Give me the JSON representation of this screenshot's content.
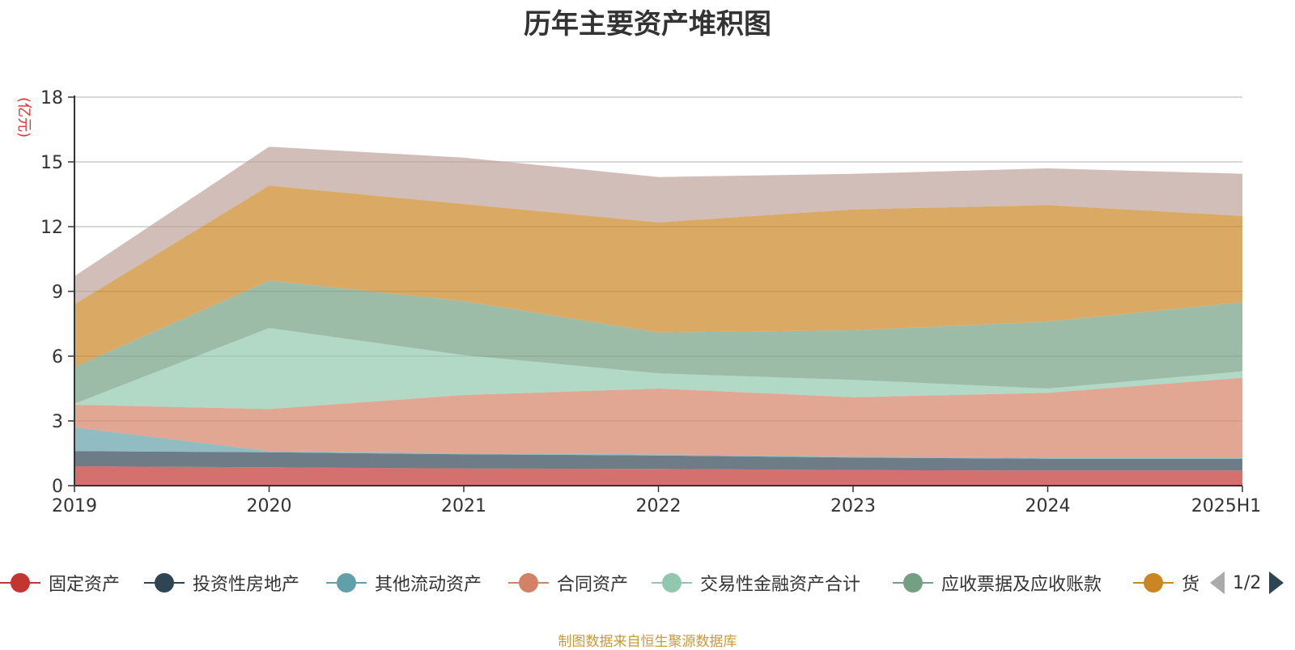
{
  "chart_data": {
    "type": "area",
    "stacked": true,
    "title": "历年主要资产堆积图",
    "ylabel": "(亿元)",
    "xlabel": "",
    "categories": [
      "2019",
      "2020",
      "2021",
      "2022",
      "2023",
      "2024",
      "2025H1"
    ],
    "ylim": [
      0,
      18
    ],
    "yticks": [
      0,
      3,
      6,
      9,
      12,
      15,
      18
    ],
    "grid": true,
    "legend_position": "bottom",
    "series": [
      {
        "name": "固定资产",
        "color": "#c23531",
        "values": [
          0.9,
          0.85,
          0.8,
          0.78,
          0.72,
          0.7,
          0.7
        ]
      },
      {
        "name": "投资性房地产",
        "color": "#2f4554",
        "values": [
          0.7,
          0.7,
          0.65,
          0.62,
          0.58,
          0.55,
          0.55
        ]
      },
      {
        "name": "其他流动资产",
        "color": "#61a0a8",
        "values": [
          1.1,
          0.05,
          0.05,
          0.05,
          0.05,
          0.05,
          0.05
        ]
      },
      {
        "name": "合同资产",
        "color": "#d48265",
        "values": [
          1.05,
          1.95,
          2.7,
          3.05,
          2.75,
          3.0,
          3.7
        ]
      },
      {
        "name": "交易性金融资产合计",
        "color": "#91c7ae",
        "values": [
          0.05,
          3.75,
          1.85,
          0.7,
          0.8,
          0.2,
          0.3
        ]
      },
      {
        "name": "应收票据及应收账款",
        "color": "#749f83",
        "values": [
          1.7,
          2.2,
          2.5,
          1.9,
          2.3,
          3.1,
          3.2
        ]
      },
      {
        "name": "货币资金",
        "legend_label": "货",
        "color": "#ca8622",
        "values": [
          2.9,
          4.4,
          4.5,
          5.1,
          5.6,
          5.4,
          4.0
        ]
      },
      {
        "name": "",
        "color": "#bda29a",
        "values": [
          1.3,
          1.8,
          2.15,
          2.1,
          1.65,
          1.7,
          1.95
        ]
      }
    ]
  },
  "legend": {
    "page_indicator": "1/2"
  },
  "source_text": "制图数据来自恒生聚源数据库"
}
